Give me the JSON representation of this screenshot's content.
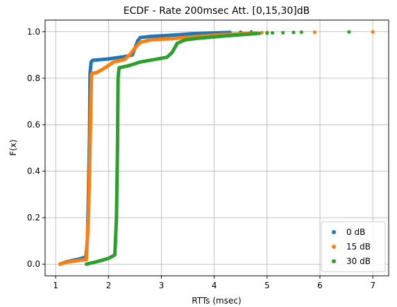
{
  "chart_data": {
    "type": "scatter",
    "title": "ECDF - Rate 200msec Att. [0,15,30]dB",
    "xlabel": "RTTs (msec)",
    "ylabel": "F(x)",
    "xlim": [
      0.8,
      7.3
    ],
    "ylim": [
      -0.05,
      1.05
    ],
    "xticks": [
      "1",
      "2",
      "3",
      "4",
      "5",
      "6",
      "7"
    ],
    "yticks": [
      "0.0",
      "0.2",
      "0.4",
      "0.6",
      "0.8",
      "1.0"
    ],
    "grid": true,
    "legend_position": "bottom-right",
    "series": [
      {
        "name": "0 dB",
        "color": "#1f77b4",
        "curve": [
          [
            1.08,
            0.0
          ],
          [
            1.2,
            0.01
          ],
          [
            1.4,
            0.02
          ],
          [
            1.57,
            0.03
          ],
          [
            1.6,
            0.1
          ],
          [
            1.62,
            0.3
          ],
          [
            1.64,
            0.55
          ],
          [
            1.65,
            0.82
          ],
          [
            1.67,
            0.87
          ],
          [
            1.7,
            0.877
          ],
          [
            2.0,
            0.883
          ],
          [
            2.3,
            0.893
          ],
          [
            2.45,
            0.9
          ],
          [
            2.55,
            0.96
          ],
          [
            2.6,
            0.975
          ],
          [
            2.8,
            0.98
          ],
          [
            3.2,
            0.985
          ],
          [
            3.6,
            0.992
          ],
          [
            4.0,
            0.995
          ],
          [
            4.3,
            0.997
          ]
        ],
        "outliers": [
          [
            4.5,
            0.998
          ],
          [
            4.7,
            0.999
          ]
        ]
      },
      {
        "name": "15 dB",
        "color": "#ff7f0e",
        "curve": [
          [
            1.08,
            0.0
          ],
          [
            1.2,
            0.008
          ],
          [
            1.4,
            0.015
          ],
          [
            1.58,
            0.02
          ],
          [
            1.62,
            0.2
          ],
          [
            1.65,
            0.5
          ],
          [
            1.67,
            0.75
          ],
          [
            1.68,
            0.82
          ],
          [
            1.78,
            0.825
          ],
          [
            1.9,
            0.84
          ],
          [
            2.1,
            0.87
          ],
          [
            2.3,
            0.88
          ],
          [
            2.4,
            0.9
          ],
          [
            2.5,
            0.93
          ],
          [
            2.6,
            0.955
          ],
          [
            2.8,
            0.965
          ],
          [
            3.2,
            0.97
          ],
          [
            3.6,
            0.978
          ],
          [
            4.0,
            0.985
          ],
          [
            4.4,
            0.99
          ],
          [
            4.8,
            0.995
          ]
        ],
        "outliers": [
          [
            4.9,
            0.996
          ],
          [
            5.0,
            0.997
          ],
          [
            5.9,
            0.998
          ],
          [
            7.0,
            0.999
          ]
        ]
      },
      {
        "name": "30 dB",
        "color": "#2ca02c",
        "curve": [
          [
            1.58,
            0.0
          ],
          [
            1.8,
            0.012
          ],
          [
            2.0,
            0.025
          ],
          [
            2.12,
            0.04
          ],
          [
            2.15,
            0.2
          ],
          [
            2.17,
            0.5
          ],
          [
            2.18,
            0.8
          ],
          [
            2.2,
            0.845
          ],
          [
            2.4,
            0.855
          ],
          [
            2.6,
            0.87
          ],
          [
            2.9,
            0.882
          ],
          [
            3.1,
            0.89
          ],
          [
            3.2,
            0.91
          ],
          [
            3.3,
            0.95
          ],
          [
            3.45,
            0.965
          ],
          [
            3.7,
            0.972
          ],
          [
            4.1,
            0.98
          ],
          [
            4.5,
            0.987
          ],
          [
            4.8,
            0.992
          ]
        ],
        "outliers": [
          [
            4.85,
            0.993
          ],
          [
            5.0,
            0.994
          ],
          [
            5.1,
            0.995
          ],
          [
            5.3,
            0.996
          ],
          [
            5.5,
            0.997
          ],
          [
            5.65,
            0.998
          ],
          [
            6.55,
            0.999
          ]
        ]
      }
    ]
  }
}
